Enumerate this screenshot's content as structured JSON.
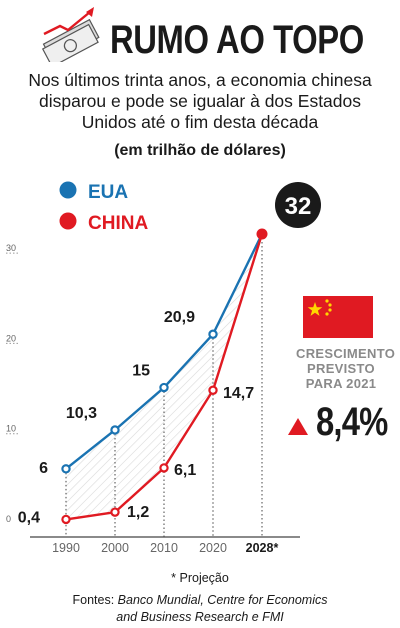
{
  "header": {
    "title": "RUMO AO TOPO",
    "subtitle_line1": "Nos últimos trinta anos, a economia chinesa",
    "subtitle_line2": "disparou e pode se igualar à dos Estados",
    "subtitle_line3": "Unidos até o fim desta década",
    "unit": "(em trilhão de dólares)"
  },
  "colors": {
    "eua": "#1a73b2",
    "china": "#e01a22",
    "dark": "#1a1a1a",
    "grey_text": "#8a8a8a"
  },
  "chart_data": {
    "type": "line",
    "x": [
      "1990",
      "2000",
      "2010",
      "2020",
      "2028*"
    ],
    "series": [
      {
        "name": "EUA",
        "values": [
          6,
          10.3,
          15,
          20.9,
          32
        ],
        "labels": [
          "6",
          "10,3",
          "15",
          "20,9",
          ""
        ]
      },
      {
        "name": "CHINA",
        "values": [
          0.4,
          1.2,
          6.1,
          14.7,
          32
        ],
        "labels": [
          "0,4",
          "1,2",
          "6,1",
          "14,7",
          ""
        ]
      }
    ],
    "yticks": [
      "0",
      "10",
      "20",
      "30"
    ],
    "ylim": [
      0,
      32
    ],
    "end_label": "32",
    "legend_position": "top-left"
  },
  "growth": {
    "label_line1": "CRESCIMENTO",
    "label_line2": "PREVISTO",
    "label_line3": "PARA 2021",
    "value": "8,4%",
    "flag_icon": "china-flag-icon",
    "arrow_icon": "up-triangle-icon"
  },
  "footer": {
    "note": "* Projeção",
    "sources_prefix": "Fontes: ",
    "sources_line1": "Banco Mundial, Centre for Economics",
    "sources_line2": "and Business Research e FMI"
  },
  "logo": {
    "icon": "banknote-rising-arrow-icon"
  }
}
